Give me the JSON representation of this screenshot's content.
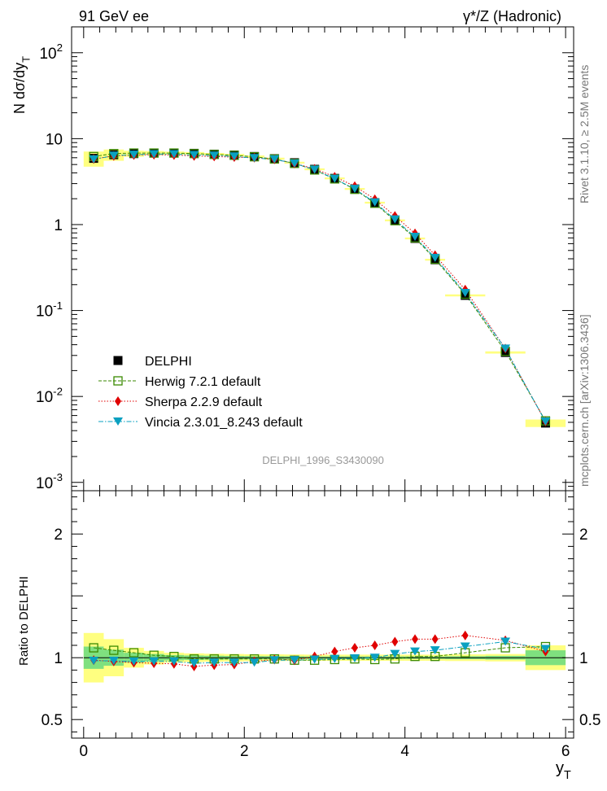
{
  "header": {
    "left": "91 GeV ee",
    "right": "γ*/Z (Hadronic)"
  },
  "side": {
    "rivet": "Rivet 3.1.10, ≥ 2.5M events",
    "mcplots": "mcplots.cern.ch [arXiv:1306.3436]"
  },
  "analysis_label": "DELPHI_1996_S3430090",
  "colors": {
    "data": "#000000",
    "herwig": "#3a8a00",
    "sherpa": "#e00000",
    "vincia": "#0aa0c0",
    "band_inner": "#7fe07f",
    "band_outer": "#ffff80"
  },
  "chart_data": [
    {
      "type": "scatter",
      "panel": "main",
      "ylabel": "N dσ/dy_T",
      "yscale": "log",
      "ylim": [
        0.0008,
        200
      ],
      "xlim": [
        -0.15,
        6.1
      ],
      "ytick_labels": [
        "10^-3",
        "10^-2",
        "10^-1",
        "1",
        "10",
        "10^2"
      ],
      "x": [
        0.125,
        0.375,
        0.625,
        0.875,
        1.125,
        1.375,
        1.625,
        1.875,
        2.125,
        2.375,
        2.625,
        2.875,
        3.125,
        3.375,
        3.625,
        3.875,
        4.125,
        4.375,
        4.75,
        5.25,
        5.75
      ],
      "series": [
        {
          "name": "DELPHI",
          "values": [
            5.9,
            6.5,
            6.7,
            6.8,
            6.8,
            6.75,
            6.6,
            6.45,
            6.2,
            5.85,
            5.25,
            4.4,
            3.45,
            2.6,
            1.8,
            1.12,
            0.69,
            0.39,
            0.15,
            0.0325,
            0.0049
          ]
        },
        {
          "name": "Herwig 7.2.1 default",
          "values": [
            6.2,
            6.7,
            6.8,
            6.8,
            6.8,
            6.7,
            6.55,
            6.4,
            6.15,
            5.8,
            5.15,
            4.32,
            3.4,
            2.57,
            1.77,
            1.11,
            0.7,
            0.395,
            0.155,
            0.0335,
            0.0052
          ]
        },
        {
          "name": "Sherpa 2.2.9 default",
          "values": [
            5.8,
            6.3,
            6.45,
            6.5,
            6.45,
            6.3,
            6.2,
            6.1,
            6.0,
            5.75,
            5.15,
            4.45,
            3.6,
            2.8,
            1.97,
            1.26,
            0.79,
            0.44,
            0.175,
            0.036,
            0.0051
          ]
        },
        {
          "name": "Vincia 2.3.01_8.243 default",
          "values": [
            5.75,
            6.35,
            6.5,
            6.6,
            6.6,
            6.45,
            6.35,
            6.2,
            5.95,
            5.75,
            5.15,
            4.35,
            3.42,
            2.6,
            1.81,
            1.15,
            0.72,
            0.41,
            0.16,
            0.036,
            0.0051
          ]
        }
      ]
    },
    {
      "type": "scatter",
      "panel": "ratio",
      "ylabel": "Ratio to DELPHI",
      "xlabel": "y_T",
      "ylim": [
        0.35,
        2.35
      ],
      "xlim": [
        -0.15,
        6.1
      ],
      "ytick_labels": [
        "0.5",
        "1",
        "2"
      ],
      "xtick_labels": [
        "0",
        "2",
        "4",
        "6"
      ],
      "x": [
        0.125,
        0.375,
        0.625,
        0.875,
        1.125,
        1.375,
        1.625,
        1.875,
        2.125,
        2.375,
        2.625,
        2.875,
        3.125,
        3.375,
        3.625,
        3.875,
        4.125,
        4.375,
        4.75,
        5.25,
        5.75
      ],
      "bin_edges": [
        0,
        0.25,
        0.5,
        0.75,
        1.0,
        1.25,
        1.5,
        1.75,
        2.0,
        2.25,
        2.5,
        2.75,
        3.0,
        3.25,
        3.5,
        3.75,
        4.0,
        4.25,
        4.5,
        5.0,
        5.5,
        6.0
      ],
      "band_inner": [
        0.09,
        0.065,
        0.04,
        0.03,
        0.022,
        0.018,
        0.016,
        0.014,
        0.013,
        0.012,
        0.011,
        0.01,
        0.01,
        0.01,
        0.01,
        0.01,
        0.01,
        0.01,
        0.012,
        0.015,
        0.06
      ],
      "band_outer": [
        0.2,
        0.15,
        0.08,
        0.055,
        0.04,
        0.035,
        0.032,
        0.03,
        0.028,
        0.027,
        0.026,
        0.025,
        0.025,
        0.025,
        0.025,
        0.025,
        0.025,
        0.025,
        0.027,
        0.03,
        0.1
      ],
      "series": [
        {
          "name": "Herwig 7.2.1 default",
          "values": [
            1.08,
            1.06,
            1.04,
            1.02,
            1.01,
            0.99,
            0.99,
            0.99,
            0.99,
            0.99,
            0.98,
            0.98,
            0.985,
            0.99,
            0.985,
            0.99,
            1.01,
            1.01,
            1.04,
            1.08,
            1.09
          ]
        },
        {
          "name": "Sherpa 2.2.9 default",
          "values": [
            0.98,
            0.97,
            0.96,
            0.955,
            0.95,
            0.93,
            0.94,
            0.945,
            0.97,
            0.985,
            0.98,
            1.01,
            1.05,
            1.08,
            1.1,
            1.13,
            1.15,
            1.15,
            1.18,
            1.14,
            1.05
          ]
        },
        {
          "name": "Vincia 2.3.01_8.243 default",
          "values": [
            0.975,
            0.975,
            0.97,
            0.97,
            0.97,
            0.955,
            0.96,
            0.96,
            0.96,
            0.98,
            0.98,
            0.985,
            0.99,
            0.995,
            1.0,
            1.03,
            1.05,
            1.06,
            1.09,
            1.13,
            1.07
          ]
        }
      ]
    }
  ]
}
